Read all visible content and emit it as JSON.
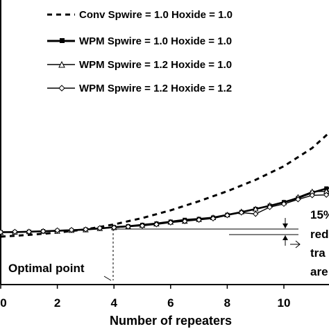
{
  "chart_data": {
    "type": "line",
    "xlabel": "Number of repeaters",
    "ylabel": "",
    "x_ticks": [
      "0",
      "2",
      "4",
      "6",
      "8",
      "10"
    ],
    "xlim": [
      0,
      12
    ],
    "legend_position": "top-right",
    "grid": false,
    "colors": {
      "line": "#000000",
      "background": "#ffffff"
    },
    "series": [
      {
        "name": "Conv Spwire = 1.0 Hoxide = 1.0",
        "style": "dashed",
        "marker": "none",
        "x": [
          0,
          1,
          2,
          3,
          4,
          5,
          6,
          7,
          8,
          9,
          10,
          11,
          11.8
        ],
        "y": [
          0.0,
          0.04,
          0.09,
          0.16,
          0.27,
          0.41,
          0.58,
          0.78,
          1.0,
          1.25,
          1.55,
          1.95,
          2.4
        ]
      },
      {
        "name": "WPM Spwire = 1.0 Hoxide = 1.0",
        "style": "solid-thick",
        "marker": "square",
        "x": [
          0,
          0.5,
          1,
          1.5,
          2,
          2.5,
          3,
          3.5,
          4,
          4.5,
          5,
          5.5,
          6,
          6.5,
          7,
          7.5,
          8,
          8.5,
          9,
          9.5,
          10,
          10.5,
          11,
          11.5,
          12
        ],
        "y": [
          0.1,
          0.1,
          0.11,
          0.12,
          0.13,
          0.14,
          0.16,
          0.18,
          0.21,
          0.23,
          0.26,
          0.29,
          0.33,
          0.37,
          0.39,
          0.42,
          0.48,
          0.54,
          0.61,
          0.68,
          0.76,
          0.85,
          0.97,
          1.06,
          1.12
        ]
      },
      {
        "name": "WPM Spwire = 1.2 Hoxide = 1.0",
        "style": "solid",
        "marker": "triangle",
        "x": [
          0,
          0.5,
          1,
          1.5,
          2,
          2.5,
          3,
          3.5,
          4,
          4.5,
          5,
          5.5,
          6,
          6.5,
          7,
          7.5,
          8,
          8.5,
          9,
          9.5,
          10,
          10.5,
          11,
          11.5,
          12
        ],
        "y": [
          0.09,
          0.1,
          0.11,
          0.12,
          0.12,
          0.14,
          0.15,
          0.18,
          0.2,
          0.22,
          0.25,
          0.28,
          0.32,
          0.34,
          0.38,
          0.42,
          0.48,
          0.55,
          0.61,
          0.69,
          0.75,
          0.87,
          0.99,
          1.0,
          0.99
        ]
      },
      {
        "name": "WPM Spwire = 1.2 Hoxide = 1.2",
        "style": "solid",
        "marker": "diamond",
        "x": [
          0,
          0.5,
          1,
          1.5,
          2,
          2.5,
          3,
          3.5,
          4,
          4.5,
          5,
          5.5,
          6,
          6.5,
          7,
          7.5,
          8,
          8.5,
          9,
          9.5,
          10,
          10.5,
          11,
          11.5,
          12
        ],
        "y": [
          0.1,
          0.11,
          0.11,
          0.12,
          0.14,
          0.15,
          0.16,
          0.19,
          0.2,
          0.22,
          0.24,
          0.27,
          0.31,
          0.34,
          0.37,
          0.4,
          0.47,
          0.53,
          0.5,
          0.65,
          0.72,
          0.82,
          0.91,
          0.92,
          0.97
        ]
      }
    ],
    "annotations": {
      "optimal_point": {
        "label": "Optimal point",
        "x": 4
      },
      "reduction_note": [
        "15%",
        "red",
        "tra",
        "are"
      ]
    }
  }
}
